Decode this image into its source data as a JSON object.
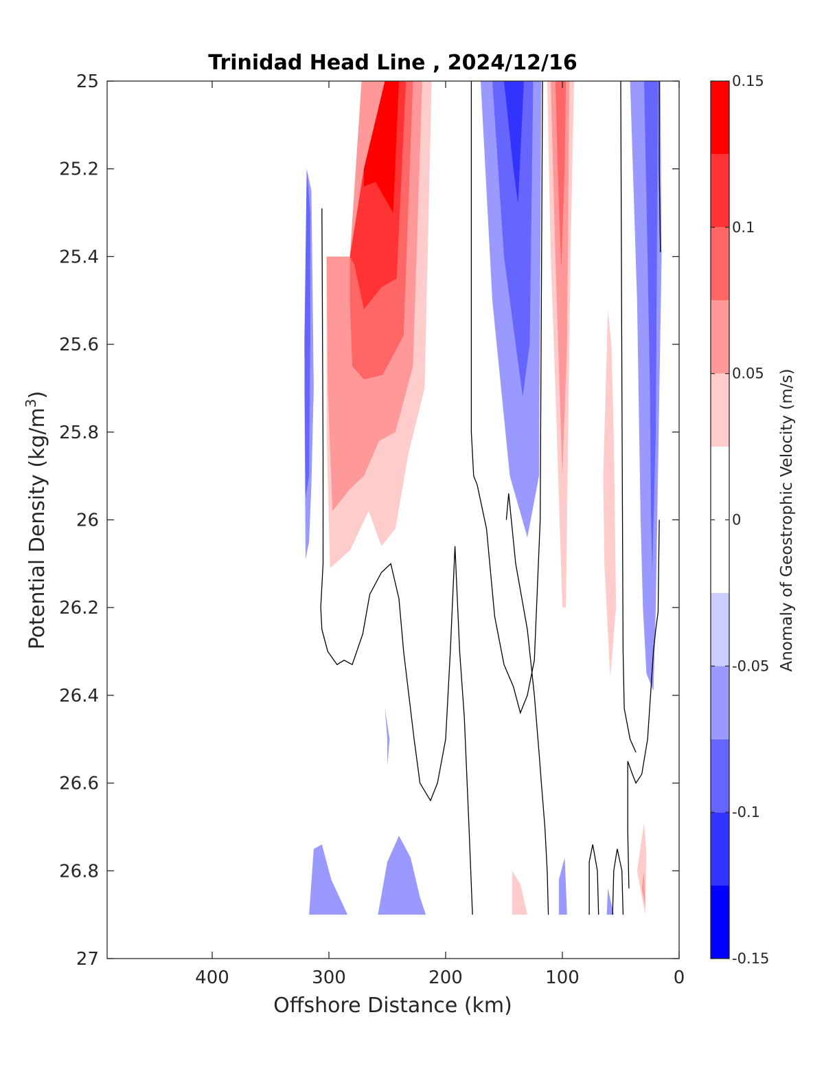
{
  "chart_data": {
    "type": "contour",
    "title": "Trinidad Head Line , 2024/12/16",
    "xlabel": "Offshore Distance (km)",
    "ylabel_main": "Potential Density (kg/m",
    "ylabel_sup": "3",
    "ylabel_tail": ")",
    "xlim": [
      490,
      0
    ],
    "x_reversed": true,
    "ylim": [
      25,
      27
    ],
    "y_reversed": true,
    "x_ticks": [
      400,
      300,
      200,
      100,
      0
    ],
    "x_tick_labels": [
      "400",
      "300",
      "200",
      "100",
      "0"
    ],
    "y_ticks": [
      25,
      25.2,
      25.4,
      25.6,
      25.8,
      26,
      26.2,
      26.4,
      26.6,
      26.8,
      27
    ],
    "y_tick_labels": [
      "25",
      "25.2",
      "25.4",
      "25.6",
      "25.8",
      "26",
      "26.2",
      "26.4",
      "26.6",
      "26.8",
      "27"
    ],
    "grid": false,
    "colorbar": {
      "label": "Anomaly of Geostrophic Velocity (m/s)",
      "range": [
        -0.15,
        0.15
      ],
      "levels": [
        -0.15,
        -0.125,
        -0.1,
        -0.075,
        -0.05,
        -0.025,
        0.025,
        0.05,
        0.075,
        0.1,
        0.125,
        0.15
      ],
      "ticks": [
        0.15,
        0.1,
        0.05,
        0,
        -0.05,
        -0.1,
        -0.15
      ],
      "tick_labels": [
        "0.15",
        "0.1",
        "0.05",
        "0",
        "-0.05",
        "-0.1",
        "-0.15"
      ],
      "colors": [
        "#0000ff",
        "#3333ff",
        "#6666ff",
        "#9999ff",
        "#ccccff",
        "#ffffff",
        "#ffcccc",
        "#ff9999",
        "#ff6666",
        "#ff3333",
        "#ff0000"
      ]
    },
    "filled_regions": [
      {
        "v": 0.05,
        "pts": [
          [
            302,
            25.4
          ],
          [
            282,
            25.4
          ],
          [
            272,
            25.0
          ],
          [
            212,
            25.0
          ],
          [
            218,
            25.7
          ],
          [
            232,
            25.85
          ],
          [
            243,
            26.02
          ],
          [
            255,
            26.06
          ],
          [
            266,
            25.98
          ],
          [
            282,
            26.07
          ],
          [
            299,
            26.11
          ],
          [
            302,
            25.8
          ]
        ]
      },
      {
        "v": 0.075,
        "pts": [
          [
            302,
            25.4
          ],
          [
            282,
            25.4
          ],
          [
            272,
            25.0
          ],
          [
            220,
            25.0
          ],
          [
            228,
            25.65
          ],
          [
            243,
            25.8
          ],
          [
            257,
            25.82
          ],
          [
            270,
            25.9
          ],
          [
            282,
            25.93
          ],
          [
            297,
            25.98
          ],
          [
            301,
            25.7
          ]
        ]
      },
      {
        "v": 0.1,
        "pts": [
          [
            282,
            25.4
          ],
          [
            270,
            25.2
          ],
          [
            252,
            25.0
          ],
          [
            228,
            25.0
          ],
          [
            236,
            25.58
          ],
          [
            254,
            25.67
          ],
          [
            270,
            25.68
          ],
          [
            280,
            25.65
          ],
          [
            282,
            25.5
          ]
        ]
      },
      {
        "v": 0.125,
        "pts": [
          [
            282,
            25.4
          ],
          [
            270,
            25.2
          ],
          [
            252,
            25.0
          ],
          [
            234,
            25.0
          ],
          [
            242,
            25.45
          ],
          [
            255,
            25.47
          ],
          [
            270,
            25.52
          ],
          [
            278,
            25.42
          ]
        ]
      },
      {
        "v": 0.15,
        "pts": [
          [
            270,
            25.2
          ],
          [
            252,
            25.0
          ],
          [
            240,
            25.0
          ],
          [
            245,
            25.3
          ],
          [
            260,
            25.23
          ],
          [
            270,
            25.24
          ]
        ]
      },
      {
        "v": -0.05,
        "pts": [
          [
            319,
            25.2
          ],
          [
            315,
            25.25
          ],
          [
            313,
            25.7
          ],
          [
            315,
            25.92
          ],
          [
            317,
            26.05
          ],
          [
            320,
            26.09
          ],
          [
            321,
            25.7
          ]
        ]
      },
      {
        "v": -0.075,
        "pts": [
          [
            319,
            25.2
          ],
          [
            316,
            25.3
          ],
          [
            316,
            25.6
          ],
          [
            317,
            25.9
          ],
          [
            320,
            25.95
          ],
          [
            321,
            25.6
          ]
        ]
      },
      {
        "v": -0.05,
        "pts": [
          [
            170,
            25.0
          ],
          [
            160,
            25.5
          ],
          [
            145,
            25.9
          ],
          [
            130,
            26.04
          ],
          [
            120,
            25.9
          ],
          [
            118,
            25.0
          ]
        ]
      },
      {
        "v": -0.075,
        "pts": [
          [
            160,
            25.0
          ],
          [
            150,
            25.4
          ],
          [
            140,
            25.6
          ],
          [
            134,
            25.72
          ],
          [
            128,
            25.6
          ],
          [
            125,
            25.0
          ]
        ]
      },
      {
        "v": -0.1,
        "pts": [
          [
            150,
            25.0
          ],
          [
            142,
            25.2
          ],
          [
            138,
            25.28
          ],
          [
            133,
            25.0
          ]
        ]
      },
      {
        "v": 0.05,
        "pts": [
          [
            113,
            25.0
          ],
          [
            110,
            25.4
          ],
          [
            106,
            25.7
          ],
          [
            100,
            26.2
          ],
          [
            97,
            26.2
          ],
          [
            95,
            25.8
          ],
          [
            93,
            25.4
          ],
          [
            90,
            25.0
          ]
        ]
      },
      {
        "v": 0.075,
        "pts": [
          [
            110,
            25.0
          ],
          [
            106,
            25.4
          ],
          [
            100,
            25.9
          ],
          [
            96,
            25.6
          ],
          [
            94,
            25.0
          ]
        ]
      },
      {
        "v": 0.1,
        "pts": [
          [
            106,
            25.0
          ],
          [
            104,
            25.2
          ],
          [
            101,
            25.43
          ],
          [
            98,
            25.2
          ],
          [
            97,
            25.0
          ]
        ]
      },
      {
        "v": 0.05,
        "pts": [
          [
            61,
            25.52
          ],
          [
            65,
            25.9
          ],
          [
            64,
            26.1
          ],
          [
            59,
            26.36
          ],
          [
            54,
            26.2
          ],
          [
            56,
            25.8
          ],
          [
            58,
            25.6
          ]
        ]
      },
      {
        "v": -0.05,
        "pts": [
          [
            42,
            25.0
          ],
          [
            36,
            25.5
          ],
          [
            33,
            26.0
          ],
          [
            31,
            26.2
          ],
          [
            28,
            26.35
          ],
          [
            22,
            26.39
          ],
          [
            20,
            26.2
          ],
          [
            15,
            25.4
          ],
          [
            16,
            25.0
          ]
        ]
      },
      {
        "v": -0.075,
        "pts": [
          [
            30,
            25.0
          ],
          [
            27,
            25.4
          ],
          [
            25,
            25.7
          ],
          [
            24,
            26.0
          ],
          [
            23,
            26.12
          ],
          [
            20,
            25.8
          ],
          [
            18,
            25.0
          ]
        ]
      },
      {
        "v": -0.05,
        "pts": [
          [
            252,
            26.43
          ],
          [
            250,
            26.5
          ],
          [
            250,
            26.56
          ],
          [
            248,
            26.5
          ]
        ]
      },
      {
        "v": -0.05,
        "pts": [
          [
            317,
            26.9
          ],
          [
            313,
            26.75
          ],
          [
            306,
            26.74
          ],
          [
            298,
            26.82
          ],
          [
            284,
            26.9
          ]
        ]
      },
      {
        "v": -0.05,
        "pts": [
          [
            258,
            26.9
          ],
          [
            250,
            26.78
          ],
          [
            240,
            26.72
          ],
          [
            230,
            26.77
          ],
          [
            222,
            26.86
          ],
          [
            217,
            26.9
          ]
        ]
      },
      {
        "v": 0.05,
        "pts": [
          [
            143,
            26.9
          ],
          [
            143,
            26.8
          ],
          [
            136,
            26.83
          ],
          [
            130,
            26.9
          ]
        ]
      },
      {
        "v": -0.05,
        "pts": [
          [
            103,
            26.9
          ],
          [
            103,
            26.82
          ],
          [
            98,
            26.77
          ],
          [
            96,
            26.9
          ]
        ]
      },
      {
        "v": -0.05,
        "pts": [
          [
            62,
            26.9
          ],
          [
            61,
            26.84
          ],
          [
            56,
            26.9
          ]
        ]
      },
      {
        "v": 0.05,
        "pts": [
          [
            36,
            26.8
          ],
          [
            30,
            26.69
          ],
          [
            28,
            26.76
          ],
          [
            29,
            26.9
          ]
        ]
      },
      {
        "v": 0.075,
        "pts": [
          [
            32,
            26.84
          ],
          [
            30,
            26.8
          ],
          [
            29,
            26.88
          ]
        ]
      }
    ],
    "zero_contours": [
      [
        [
          306,
          25.29
        ],
        [
          305,
          25.85
        ],
        [
          305,
          26.1
        ],
        [
          307,
          26.2
        ],
        [
          306,
          26.25
        ],
        [
          301,
          26.3
        ],
        [
          293,
          26.33
        ],
        [
          287,
          26.32
        ],
        [
          280,
          26.33
        ],
        [
          271,
          26.26
        ],
        [
          265,
          26.17
        ],
        [
          255,
          26.12
        ],
        [
          247,
          26.1
        ],
        [
          240,
          26.18
        ],
        [
          236,
          26.3
        ],
        [
          227,
          26.5
        ],
        [
          222,
          26.6
        ],
        [
          213,
          26.64
        ],
        [
          207,
          26.6
        ],
        [
          200,
          26.5
        ],
        [
          196,
          26.3
        ],
        [
          192,
          26.06
        ],
        [
          188,
          26.3
        ],
        [
          184,
          26.45
        ],
        [
          180,
          26.7
        ],
        [
          177,
          26.9
        ]
      ],
      [
        [
          178,
          25.0
        ],
        [
          178,
          25.8
        ],
        [
          176,
          25.9
        ],
        [
          173,
          25.92
        ],
        [
          165,
          26.02
        ],
        [
          158,
          26.22
        ],
        [
          150,
          26.33
        ],
        [
          142,
          26.38
        ],
        [
          136,
          26.44
        ],
        [
          130,
          26.4
        ],
        [
          124,
          26.32
        ],
        [
          119,
          26.0
        ],
        [
          117,
          25.0
        ]
      ],
      [
        [
          112,
          26.9
        ],
        [
          113,
          26.8
        ],
        [
          115,
          26.7
        ],
        [
          118,
          26.6
        ],
        [
          120,
          26.53
        ],
        [
          124,
          26.4
        ],
        [
          130,
          26.25
        ],
        [
          140,
          26.1
        ],
        [
          146,
          25.94
        ],
        [
          148,
          26.0
        ]
      ],
      [
        [
          50,
          25.0
        ],
        [
          49,
          25.7
        ],
        [
          48,
          26.3
        ],
        [
          47,
          26.43
        ],
        [
          42,
          26.5
        ],
        [
          37,
          26.53
        ]
      ],
      [
        [
          17,
          25.0
        ],
        [
          17,
          25.2
        ],
        [
          16,
          25.39
        ]
      ],
      [
        [
          43,
          26.84
        ],
        [
          44,
          26.71
        ],
        [
          44,
          26.55
        ],
        [
          40,
          26.58
        ],
        [
          37,
          26.6
        ],
        [
          32,
          26.58
        ],
        [
          27,
          26.5
        ],
        [
          25,
          26.42
        ],
        [
          22,
          26.3
        ],
        [
          20,
          26.25
        ],
        [
          18,
          26.21
        ],
        [
          17,
          26.0
        ]
      ],
      [
        [
          57,
          26.9
        ],
        [
          56,
          26.8
        ],
        [
          53,
          26.75
        ],
        [
          49,
          26.8
        ],
        [
          48,
          26.9
        ]
      ],
      [
        [
          77,
          26.9
        ],
        [
          77,
          26.78
        ],
        [
          74,
          26.74
        ],
        [
          70,
          26.8
        ],
        [
          69,
          26.9
        ]
      ]
    ]
  }
}
